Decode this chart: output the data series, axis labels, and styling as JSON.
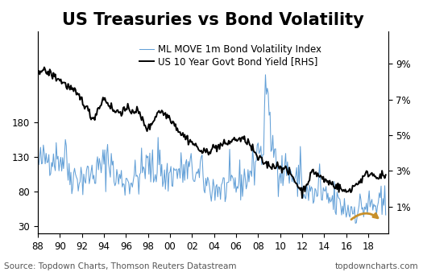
{
  "title": "US Treasuries vs Bond Volatility",
  "legend_blue": "ML MOVE 1m Bond Volatility Index",
  "legend_black": "US 10 Year Govt Bond Yield [RHS]",
  "source_left": "Source: Topdown Charts, Thomson Reuters Datastream",
  "source_right": "topdowncharts.com",
  "left_yticks": [
    30,
    80,
    130,
    180
  ],
  "right_yticks": [
    1,
    3,
    5,
    7,
    9
  ],
  "right_ytick_labels": [
    "1%",
    "3%",
    "5%",
    "7%",
    "9%"
  ],
  "xlim_start": 1988.0,
  "xlim_end": 2019.8,
  "ylim_left": [
    20,
    310
  ],
  "ylim_right": [
    -0.5,
    10.8
  ],
  "blue_color": "#5b9bd5",
  "black_color": "#000000",
  "gold_color": "#c8902a",
  "background_color": "#ffffff",
  "title_fontsize": 15,
  "tick_fontsize": 8.5,
  "legend_fontsize": 8.5,
  "source_fontsize": 7.5,
  "move_knots_x": [
    1988,
    1989,
    1990,
    1991,
    1992,
    1993,
    1994,
    1995,
    1996,
    1997,
    1998,
    1999,
    2000,
    2001,
    2002,
    2003,
    2004,
    2005,
    2006,
    2007,
    2008.5,
    2008.8,
    2009.2,
    2010,
    2011,
    2012,
    2013,
    2014,
    2015,
    2016,
    2017,
    2018,
    2019
  ],
  "move_knots_y": [
    120,
    130,
    130,
    105,
    100,
    105,
    120,
    100,
    95,
    100,
    120,
    95,
    105,
    110,
    110,
    95,
    85,
    85,
    90,
    100,
    140,
    260,
    150,
    110,
    105,
    80,
    75,
    70,
    65,
    55,
    55,
    60,
    58
  ],
  "yield_knots_x": [
    1988,
    1989,
    1990,
    1991,
    1992,
    1993,
    1994,
    1995,
    1996,
    1997,
    1998,
    1999,
    2000,
    2001,
    2002,
    2003,
    2004,
    2005,
    2006,
    2007,
    2008,
    2009,
    2010,
    2011,
    2012,
    2013,
    2014,
    2015,
    2016,
    2017,
    2018,
    2019
  ],
  "yield_knots_y": [
    8.7,
    8.5,
    8.1,
    7.6,
    7.0,
    5.9,
    7.1,
    6.3,
    6.4,
    6.4,
    5.3,
    6.4,
    6.0,
    5.1,
    4.6,
    4.0,
    4.3,
    4.5,
    4.8,
    4.7,
    3.7,
    3.3,
    3.3,
    2.8,
    1.8,
    3.0,
    2.5,
    2.2,
    1.8,
    2.3,
    2.9,
    2.7
  ]
}
